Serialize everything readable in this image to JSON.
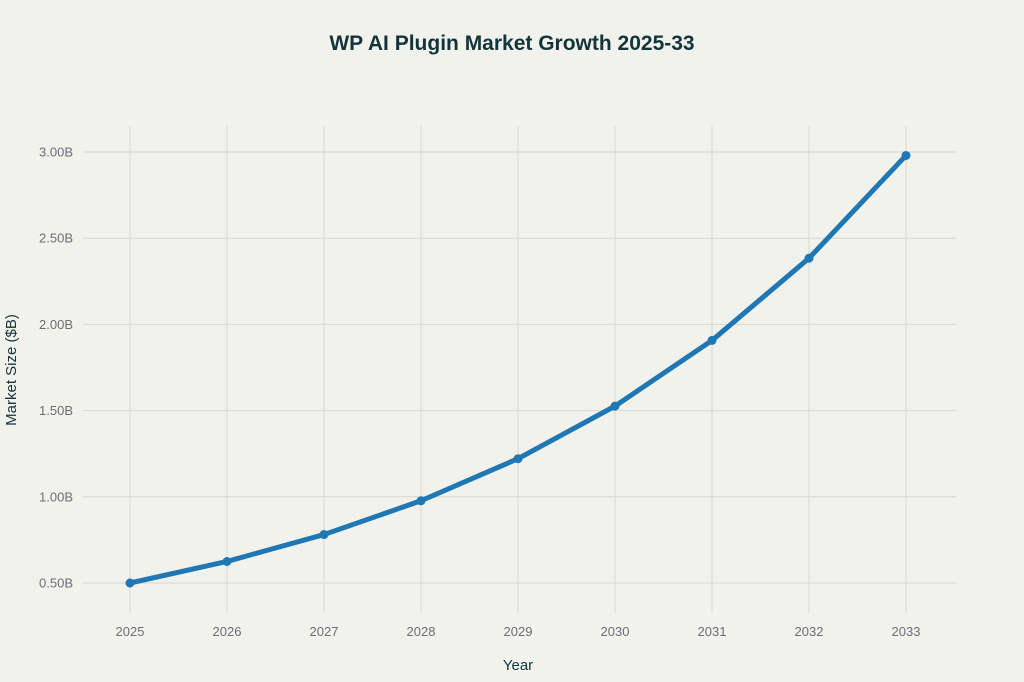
{
  "chart_data": {
    "type": "line",
    "title": "WP AI Plugin Market Growth 2025-33",
    "xlabel": "Year",
    "ylabel": "Market Size ($B)",
    "x": [
      "2025",
      "2026",
      "2027",
      "2028",
      "2029",
      "2030",
      "2031",
      "2032",
      "2033"
    ],
    "series": [
      {
        "name": "Market Size",
        "color": "#1f77b4",
        "values": [
          0.5,
          0.625,
          0.781,
          0.977,
          1.221,
          1.526,
          1.907,
          2.384,
          2.98
        ]
      }
    ],
    "yticks": [
      0.5,
      1.0,
      1.5,
      2.0,
      2.5,
      3.0
    ],
    "ytick_labels": [
      "0.50B",
      "1.00B",
      "1.50B",
      "2.00B",
      "2.50B",
      "3.00B"
    ],
    "ylim": [
      0.35,
      3.15
    ],
    "grid": true,
    "legend": "none"
  }
}
